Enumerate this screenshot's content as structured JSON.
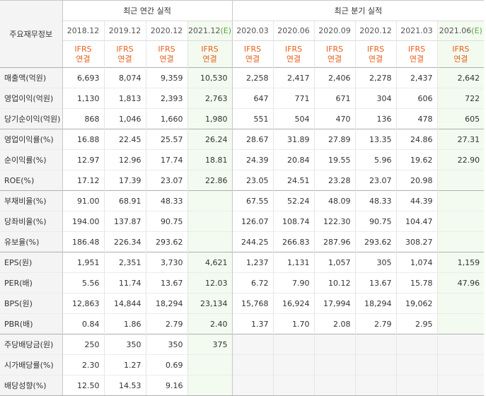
{
  "header": {
    "label_col": "주요재무정보",
    "annual_title": "최근 연간 실적",
    "quarter_title": "최근 분기 실적",
    "annual_years": [
      {
        "year": "2018.12",
        "est": ""
      },
      {
        "year": "2019.12",
        "est": ""
      },
      {
        "year": "2020.12",
        "est": ""
      },
      {
        "year": "2021.12",
        "est": "(E)"
      }
    ],
    "quarter_years": [
      {
        "year": "2020.03",
        "est": ""
      },
      {
        "year": "2020.06",
        "est": ""
      },
      {
        "year": "2020.09",
        "est": ""
      },
      {
        "year": "2020.12",
        "est": ""
      },
      {
        "year": "2021.03",
        "est": ""
      },
      {
        "year": "2021.06",
        "est": "(E)"
      }
    ],
    "basis_top": "IFRS",
    "basis_bottom": "연결"
  },
  "rows": [
    {
      "label": "매출액(억원)",
      "vals": [
        "6,693",
        "8,074",
        "9,359",
        "10,530",
        "2,258",
        "2,417",
        "2,406",
        "2,278",
        "2,437",
        "2,642"
      ]
    },
    {
      "label": "영업이익(억원)",
      "vals": [
        "1,130",
        "1,813",
        "2,393",
        "2,763",
        "647",
        "771",
        "671",
        "304",
        "606",
        "722"
      ]
    },
    {
      "label": "당기순이익(억원)",
      "vals": [
        "868",
        "1,046",
        "1,660",
        "1,980",
        "551",
        "504",
        "470",
        "136",
        "478",
        "605"
      ]
    },
    {
      "label": "영업이익률(%)",
      "vals": [
        "16.88",
        "22.45",
        "25.57",
        "26.24",
        "28.67",
        "31.89",
        "27.89",
        "13.35",
        "24.86",
        "27.31"
      ]
    },
    {
      "label": "순이익률(%)",
      "vals": [
        "12.97",
        "12.96",
        "17.74",
        "18.81",
        "24.39",
        "20.84",
        "19.55",
        "5.96",
        "19.62",
        "22.90"
      ]
    },
    {
      "label": "ROE(%)",
      "vals": [
        "17.12",
        "17.39",
        "23.07",
        "22.86",
        "23.05",
        "24.51",
        "23.28",
        "23.07",
        "20.98",
        ""
      ]
    },
    {
      "label": "부채비율(%)",
      "vals": [
        "91.00",
        "68.91",
        "48.33",
        "",
        "67.55",
        "52.24",
        "48.09",
        "48.33",
        "44.39",
        ""
      ]
    },
    {
      "label": "당좌비율(%)",
      "vals": [
        "194.00",
        "137.87",
        "90.75",
        "",
        "126.07",
        "108.74",
        "122.30",
        "90.75",
        "104.47",
        ""
      ]
    },
    {
      "label": "유보율(%)",
      "vals": [
        "186.48",
        "226.34",
        "293.62",
        "",
        "244.25",
        "266.83",
        "287.96",
        "293.62",
        "308.27",
        ""
      ]
    },
    {
      "label": "EPS(원)",
      "vals": [
        "1,951",
        "2,351",
        "3,730",
        "4,621",
        "1,237",
        "1,131",
        "1,057",
        "305",
        "1,074",
        "1,159"
      ]
    },
    {
      "label": "PER(배)",
      "vals": [
        "5.56",
        "11.74",
        "13.67",
        "12.03",
        "6.72",
        "7.90",
        "10.12",
        "13.67",
        "15.78",
        "47.96"
      ]
    },
    {
      "label": "BPS(원)",
      "vals": [
        "12,863",
        "14,844",
        "18,294",
        "23,134",
        "15,768",
        "16,924",
        "17,994",
        "18,294",
        "19,062",
        ""
      ]
    },
    {
      "label": "PBR(배)",
      "vals": [
        "0.84",
        "1.86",
        "2.79",
        "2.40",
        "1.37",
        "1.70",
        "2.08",
        "2.79",
        "2.95",
        ""
      ]
    },
    {
      "label": "주당배당금(원)",
      "vals": [
        "250",
        "350",
        "350",
        "375",
        "",
        "",
        "",
        "",
        "",
        ""
      ]
    },
    {
      "label": "시가배당률(%)",
      "vals": [
        "2.30",
        "1.27",
        "0.69",
        "",
        "",
        "",
        "",
        "",
        "",
        ""
      ]
    },
    {
      "label": "배당성향(%)",
      "vals": [
        "12.50",
        "14.53",
        "9.16",
        "",
        "",
        "",
        "",
        "",
        "",
        ""
      ]
    }
  ]
}
